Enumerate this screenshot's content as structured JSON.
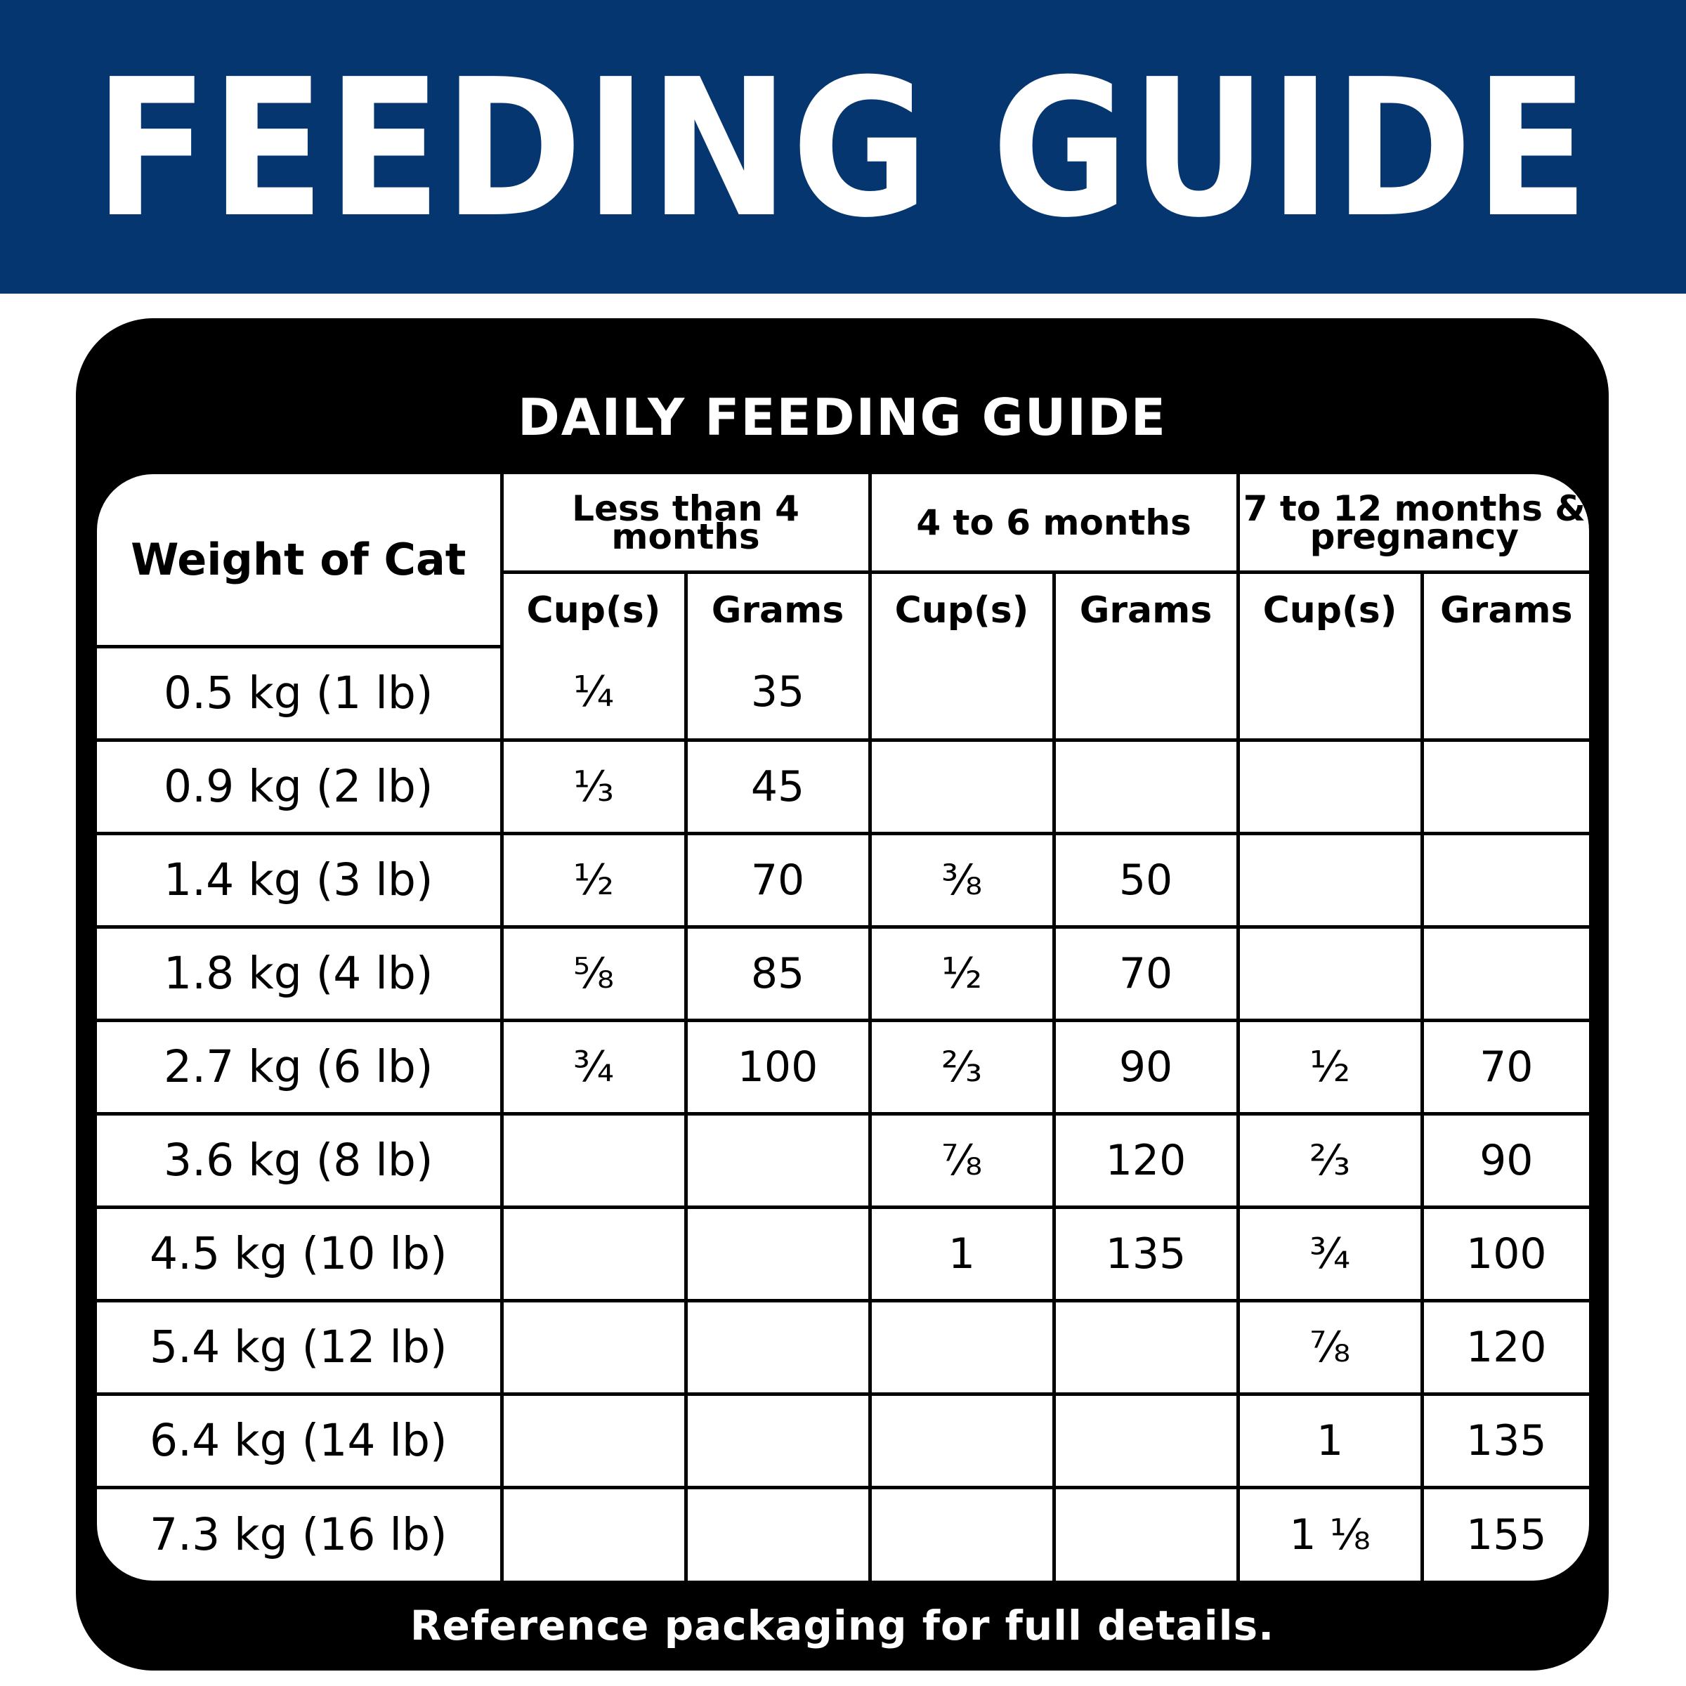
{
  "banner": {
    "title": "FEEDING GUIDE",
    "background_color": "#053670"
  },
  "panel": {
    "title": "DAILY FEEDING GUIDE",
    "footer": "Reference packaging for full details."
  },
  "table": {
    "weight_header": "Weight of Cat",
    "age_groups": [
      "Less than 4 months",
      "4 to 6 months",
      "7 to 12 months & pregnancy"
    ],
    "unit_headers": [
      "Cup(s)",
      "Grams",
      "Cup(s)",
      "Grams",
      "Cup(s)",
      "Grams"
    ],
    "rows": [
      {
        "weight": "0.5 kg (1 lb)",
        "values": [
          "¼",
          "35",
          "",
          "",
          "",
          ""
        ]
      },
      {
        "weight": "0.9 kg (2 lb)",
        "values": [
          "⅓",
          "45",
          "",
          "",
          "",
          ""
        ]
      },
      {
        "weight": "1.4 kg (3 lb)",
        "values": [
          "½",
          "70",
          "⅜",
          "50",
          "",
          ""
        ]
      },
      {
        "weight": "1.8 kg (4 lb)",
        "values": [
          "⅝",
          "85",
          "½",
          "70",
          "",
          ""
        ]
      },
      {
        "weight": "2.7 kg (6 lb)",
        "values": [
          "¾",
          "100",
          "⅔",
          "90",
          "½",
          "70"
        ]
      },
      {
        "weight": "3.6 kg (8 lb)",
        "values": [
          "",
          "",
          "⅞",
          "120",
          "⅔",
          "90"
        ]
      },
      {
        "weight": "4.5 kg (10 lb)",
        "values": [
          "",
          "",
          "1",
          "135",
          "¾",
          "100"
        ]
      },
      {
        "weight": "5.4 kg (12 lb)",
        "values": [
          "",
          "",
          "",
          "",
          "⅞",
          "120"
        ]
      },
      {
        "weight": "6.4 kg (14 lb)",
        "values": [
          "",
          "",
          "",
          "",
          "1",
          "135"
        ]
      },
      {
        "weight": "7.3 kg (16 lb)",
        "values": [
          "",
          "",
          "",
          "",
          "1 ⅛",
          "155"
        ]
      }
    ]
  }
}
